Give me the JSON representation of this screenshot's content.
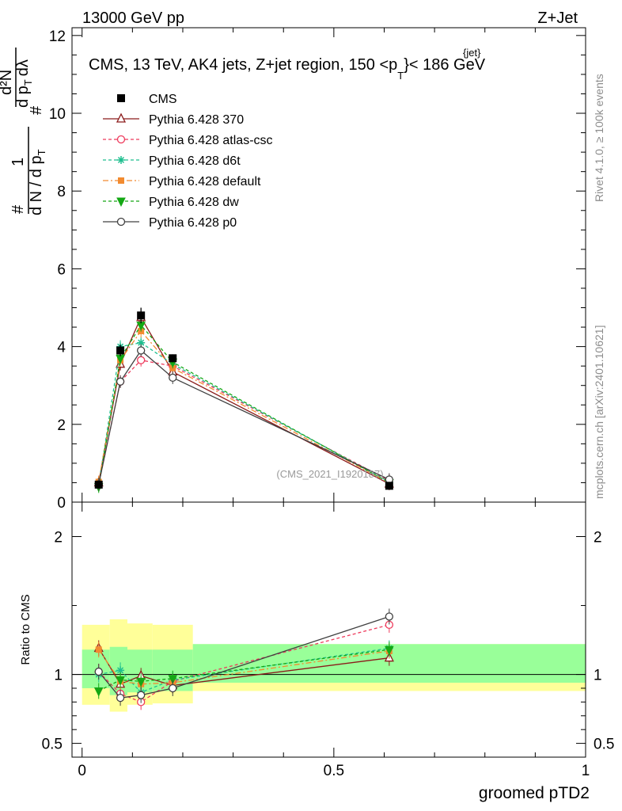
{
  "header": {
    "left": "13000 GeV pp",
    "right": "Z+Jet"
  },
  "side": {
    "rivet": "Rivet 4.1.0, ≥ 100k events",
    "mcplots": "mcplots.cern.ch [arXiv:2401.10621]"
  },
  "chart_data": {
    "type": "line",
    "title": "CMS, 13 TeV, AK4 jets, Z+jet region, 150 <p_T^{jet}< 186 GeV",
    "title_main": "CMS, 13 TeV, AK4 jets, Z+jet region, 150 <p",
    "title_sup": "{jet}",
    "title_sub": "T",
    "title_tail": "}< 186 GeV",
    "ylabel": "1/dN/dp_T  d²N/dp_T dλ",
    "ylabel_parts": {
      "one": "1",
      "num": "d²N",
      "den": "d N / d p",
      "den_sub": "T",
      "inner_num": "d p",
      "inner_sub": "T",
      "inner_tail": "dλ",
      "hash": "#"
    },
    "xlabel": "groomed pTD2",
    "ratio_ylabel": "Ratio to CMS",
    "watermark": "(CMS_2021_I1920187)",
    "xlim": [
      -0.02,
      1.0
    ],
    "ylim": [
      0,
      12.2
    ],
    "ratio_ylim": [
      0.4,
      2.25
    ],
    "x_ticks": [
      {
        "value": 0,
        "label": "0"
      },
      {
        "value": 0.5,
        "label": "0.5"
      },
      {
        "value": 1,
        "label": "1"
      }
    ],
    "y_ticks": [
      {
        "value": 0,
        "label": "0"
      },
      {
        "value": 2,
        "label": "2"
      },
      {
        "value": 4,
        "label": "4"
      },
      {
        "value": 6,
        "label": "6"
      },
      {
        "value": 8,
        "label": "8"
      },
      {
        "value": 10,
        "label": "10"
      },
      {
        "value": 12,
        "label": "12"
      }
    ],
    "ratio_y_ticks": [
      {
        "value": 0.5,
        "label": "0.5"
      },
      {
        "value": 1,
        "label": "1"
      },
      {
        "value": 2,
        "label": "2"
      }
    ],
    "bins": [
      0.0,
      0.055,
      0.09,
      0.14,
      0.22,
      1.0
    ],
    "x": [
      0.033,
      0.076,
      0.117,
      0.18,
      0.61
    ],
    "cms": {
      "name": "CMS",
      "values": [
        0.45,
        3.9,
        4.8,
        3.7,
        0.42
      ],
      "errors": [
        0.05,
        0.15,
        0.2,
        0.1,
        0.04
      ]
    },
    "uncertainty_bands": {
      "green": [
        [
          0.9,
          1.18
        ],
        [
          0.85,
          1.2
        ],
        [
          0.87,
          1.18
        ],
        [
          0.88,
          1.18
        ],
        [
          0.94,
          1.22
        ]
      ],
      "yellow": [
        [
          0.78,
          1.36
        ],
        [
          0.73,
          1.4
        ],
        [
          0.78,
          1.37
        ],
        [
          0.79,
          1.36
        ],
        [
          0.88,
          1.22
        ]
      ]
    },
    "series": [
      {
        "name": "Pythia 6.428 370",
        "color": "#8b1a1a",
        "dash": "",
        "marker": "triangle-open",
        "values": [
          0.5,
          3.55,
          4.75,
          3.35,
          0.47
        ],
        "ratio": [
          1.19,
          0.93,
          0.99,
          0.92,
          1.12
        ]
      },
      {
        "name": "Pythia 6.428 atlas-csc",
        "color": "#ee3a5c",
        "dash": "4,3",
        "marker": "circle-open",
        "values": [
          0.46,
          3.1,
          3.65,
          3.5,
          0.55
        ],
        "ratio": [
          1.02,
          0.86,
          0.8,
          0.95,
          1.36
        ]
      },
      {
        "name": "Pythia 6.428 d6t",
        "color": "#1fbf8f",
        "dash": "4,3",
        "marker": "star",
        "values": [
          0.45,
          4.0,
          4.1,
          3.55,
          0.52
        ],
        "ratio": [
          1.0,
          1.03,
          0.87,
          0.96,
          1.19
        ]
      },
      {
        "name": "Pythia 6.428 default",
        "color": "#f28b30",
        "dash": "7,3,2,3",
        "marker": "square",
        "values": [
          0.52,
          3.65,
          4.4,
          3.45,
          0.5
        ],
        "ratio": [
          1.18,
          0.95,
          0.93,
          0.94,
          1.17
        ]
      },
      {
        "name": "Pythia 6.428 dw",
        "color": "#14a814",
        "dash": "4,3",
        "marker": "triangle-down",
        "values": [
          0.4,
          3.7,
          4.55,
          3.6,
          0.5
        ],
        "ratio": [
          0.88,
          0.96,
          0.95,
          0.97,
          1.18
        ]
      },
      {
        "name": "Pythia 6.428 p0",
        "color": "#404040",
        "dash": "",
        "marker": "circle-open",
        "values": [
          0.46,
          3.1,
          3.9,
          3.2,
          0.58
        ],
        "ratio": [
          1.02,
          0.83,
          0.85,
          0.9,
          1.42
        ]
      }
    ]
  }
}
